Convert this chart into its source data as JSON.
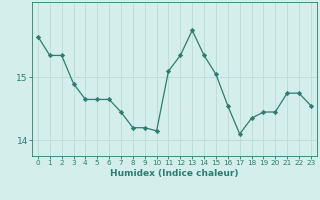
{
  "x": [
    0,
    1,
    2,
    3,
    4,
    5,
    6,
    7,
    8,
    9,
    10,
    11,
    12,
    13,
    14,
    15,
    16,
    17,
    18,
    19,
    20,
    21,
    22,
    23
  ],
  "y": [
    15.65,
    15.35,
    15.35,
    14.9,
    14.65,
    14.65,
    14.65,
    14.45,
    14.2,
    14.2,
    14.15,
    15.1,
    15.35,
    15.75,
    15.35,
    15.05,
    14.55,
    14.1,
    14.35,
    14.45,
    14.45,
    14.75,
    14.75,
    14.55
  ],
  "xlabel": "Humidex (Indice chaleur)",
  "line_color": "#2d7d6e",
  "marker": "D",
  "marker_size": 2.2,
  "background_color": "#d4eeeb",
  "grid_color": "#b8ddd9",
  "tick_color": "#2d7d6e",
  "label_color": "#2d7d6e",
  "yticks": [
    14,
    15
  ],
  "ylim": [
    13.75,
    16.2
  ],
  "xlim": [
    -0.5,
    23.5
  ],
  "xtick_labels": [
    "0",
    "1",
    "2",
    "3",
    "4",
    "5",
    "6",
    "7",
    "8",
    "9",
    "10",
    "11",
    "12",
    "13",
    "14",
    "15",
    "16",
    "17",
    "18",
    "19",
    "20",
    "21",
    "22",
    "23"
  ],
  "xlabel_fontsize": 6.5,
  "xlabel_fontweight": "bold",
  "ytick_fontsize": 6.5,
  "xtick_fontsize": 5.2
}
